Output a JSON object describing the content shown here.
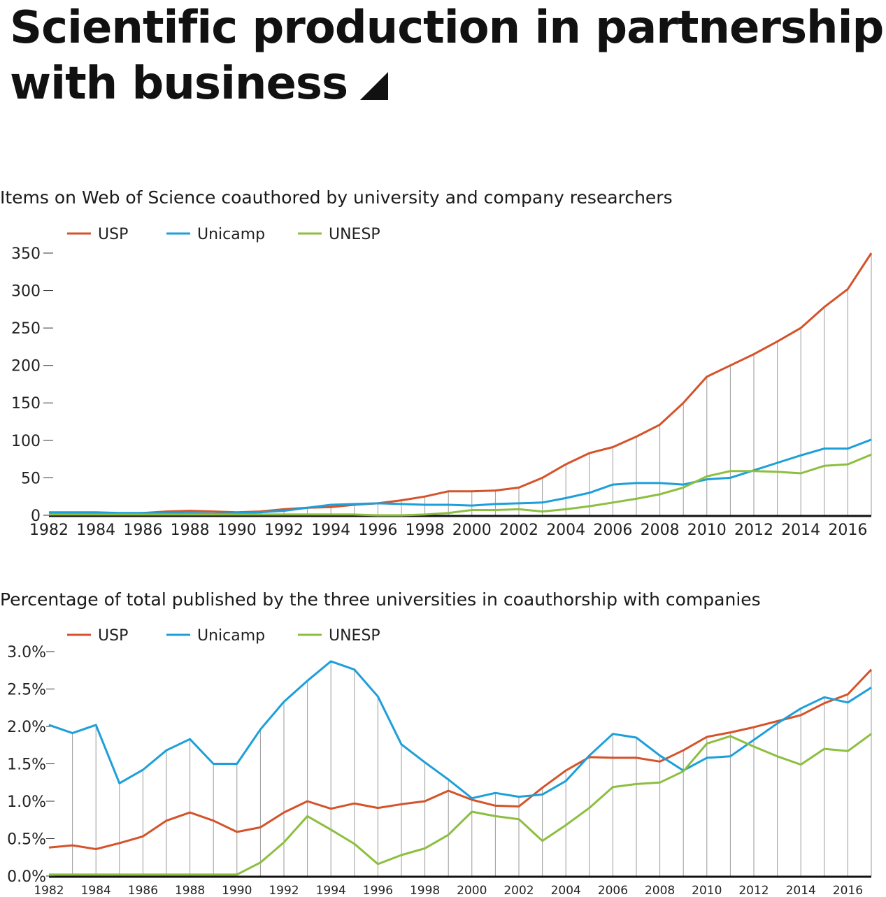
{
  "page": {
    "title_line1": "Scientific production in partnership",
    "title_line2": "with business"
  },
  "colors": {
    "USP": "#d4532a",
    "Unicamp": "#1d9fd9",
    "UNESP": "#8cbf3f",
    "grid": "#9a9a9a"
  },
  "chart_data": [
    {
      "type": "line",
      "title": "Items on Web of Science coauthored by university and company researchers",
      "xlabel": "",
      "ylabel": "",
      "x": [
        1982,
        1983,
        1984,
        1985,
        1986,
        1987,
        1988,
        1989,
        1990,
        1991,
        1992,
        1993,
        1994,
        1995,
        1996,
        1997,
        1998,
        1999,
        2000,
        2001,
        2002,
        2003,
        2004,
        2005,
        2006,
        2007,
        2008,
        2009,
        2010,
        2011,
        2012,
        2013,
        2014,
        2015,
        2016,
        2017
      ],
      "x_tick_labels": [
        "1982",
        "1984",
        "1986",
        "1988",
        "1990",
        "1992",
        "1994",
        "1996",
        "1998",
        "2000",
        "2002",
        "2004",
        "2006",
        "2008",
        "2010",
        "2012",
        "2014",
        "2016"
      ],
      "y_tick_labels": [
        "0",
        "50",
        "100",
        "150",
        "200",
        "250",
        "300",
        "350"
      ],
      "ylim": [
        0,
        350
      ],
      "grid": "vertical",
      "legend_position": "top-left",
      "series": [
        {
          "name": "USP",
          "values": [
            2,
            2,
            2,
            2,
            3,
            5,
            6,
            5,
            4,
            5,
            8,
            10,
            11,
            14,
            16,
            20,
            25,
            32,
            32,
            33,
            37,
            50,
            68,
            83,
            91,
            105,
            121,
            150,
            185,
            200,
            215,
            232,
            250,
            278,
            302,
            350
          ]
        },
        {
          "name": "Unicamp",
          "values": [
            4,
            4,
            4,
            3,
            3,
            3,
            3,
            2,
            3,
            4,
            6,
            10,
            14,
            15,
            16,
            15,
            14,
            14,
            13,
            15,
            16,
            17,
            23,
            30,
            41,
            43,
            43,
            41,
            48,
            50,
            60,
            70,
            80,
            89,
            89,
            101
          ]
        },
        {
          "name": "UNESP",
          "values": [
            1,
            1,
            1,
            1,
            1,
            1,
            1,
            1,
            1,
            1,
            1,
            1,
            1,
            1,
            0,
            0,
            1,
            3,
            7,
            7,
            8,
            5,
            8,
            12,
            17,
            22,
            28,
            37,
            52,
            59,
            59,
            58,
            56,
            66,
            68,
            81
          ]
        }
      ]
    },
    {
      "type": "line",
      "title": "Percentage of total published by the three universities in coauthorship with companies",
      "xlabel": "",
      "ylabel": "",
      "x": [
        1982,
        1983,
        1984,
        1985,
        1986,
        1987,
        1988,
        1989,
        1990,
        1991,
        1992,
        1993,
        1994,
        1995,
        1996,
        1997,
        1998,
        1999,
        2000,
        2001,
        2002,
        2003,
        2004,
        2005,
        2006,
        2007,
        2008,
        2009,
        2010,
        2011,
        2012,
        2013,
        2014,
        2015,
        2016,
        2017
      ],
      "x_tick_labels": [
        "1982",
        "1984",
        "1986",
        "1988",
        "1990",
        "1992",
        "1994",
        "1996",
        "1998",
        "2000",
        "2002",
        "2004",
        "2006",
        "2008",
        "2010",
        "2012",
        "2014",
        "2016"
      ],
      "y_tick_labels": [
        "0.0%",
        "0.5%",
        "1.0%",
        "1.5%",
        "2.0%",
        "2.5%",
        "3.0%"
      ],
      "ylim": [
        0,
        3.0
      ],
      "grid": "vertical",
      "legend_position": "top-left",
      "series": [
        {
          "name": "USP",
          "values": [
            0.38,
            0.41,
            0.36,
            0.44,
            0.53,
            0.74,
            0.85,
            0.74,
            0.59,
            0.65,
            0.85,
            1.0,
            0.9,
            0.97,
            0.91,
            0.96,
            1.0,
            1.14,
            1.02,
            0.94,
            0.93,
            1.18,
            1.41,
            1.59,
            1.58,
            1.58,
            1.53,
            1.68,
            1.86,
            1.92,
            1.99,
            2.07,
            2.15,
            2.31,
            2.43,
            2.76
          ]
        },
        {
          "name": "Unicamp",
          "values": [
            2.02,
            1.91,
            2.02,
            1.24,
            1.42,
            1.68,
            1.83,
            1.5,
            1.5,
            1.96,
            2.33,
            2.61,
            2.87,
            2.76,
            2.4,
            1.76,
            1.52,
            1.29,
            1.04,
            1.11,
            1.06,
            1.09,
            1.27,
            1.61,
            1.9,
            1.85,
            1.61,
            1.41,
            1.58,
            1.6,
            1.82,
            2.04,
            2.24,
            2.39,
            2.32,
            2.52
          ]
        },
        {
          "name": "UNESP",
          "values": [
            0.02,
            0.02,
            0.02,
            0.02,
            0.02,
            0.02,
            0.02,
            0.02,
            0.02,
            0.18,
            0.45,
            0.8,
            0.62,
            0.43,
            0.16,
            0.28,
            0.37,
            0.55,
            0.86,
            0.8,
            0.76,
            0.47,
            0.68,
            0.91,
            1.19,
            1.23,
            1.25,
            1.4,
            1.77,
            1.87,
            1.73,
            1.6,
            1.49,
            1.7,
            1.67,
            1.9
          ]
        }
      ]
    }
  ]
}
